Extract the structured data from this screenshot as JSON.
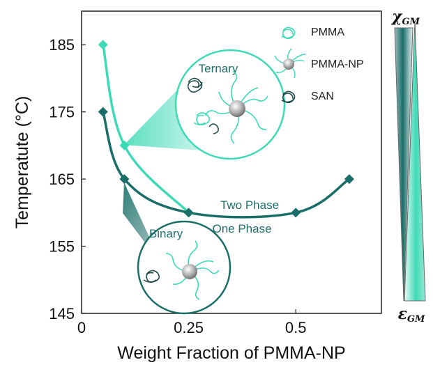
{
  "chart_data": {
    "type": "line",
    "xlabel": "Weight Fraction of PMMA-NP",
    "ylabel": "Temperatute (°C)",
    "xlim": [
      0,
      0.7
    ],
    "ylim": [
      145,
      190
    ],
    "xticks": [
      0,
      0.25,
      0.5
    ],
    "xtick_labels": [
      "0",
      "0.25",
      "0.5"
    ],
    "yticks": [
      145,
      155,
      165,
      175,
      185
    ],
    "ytick_labels": [
      "145",
      "155",
      "165",
      "175",
      "185"
    ],
    "series": [
      {
        "color": "#3ed9b6",
        "marker": "diamond",
        "x": [
          0.05,
          0.1,
          0.25
        ],
        "y": [
          185,
          170,
          160
        ]
      },
      {
        "color": "#1a6e68",
        "marker": "diamond",
        "x": [
          0.05,
          0.1,
          0.25,
          0.5,
          0.625
        ],
        "y": [
          175,
          165,
          160,
          160,
          165
        ]
      }
    ],
    "annotations": {
      "ternary": "Ternary",
      "binary": "Binary",
      "two_phase": "Two Phase",
      "one_phase": "One Phase"
    },
    "legend": {
      "placement": "top-right",
      "entries": [
        "PMMA",
        "PMMA-NP",
        "SAN"
      ]
    },
    "side_bars": {
      "top_label": "χGM",
      "bottom_label": "εGM",
      "dark_color": "#1a6e68",
      "light_color": "#3ed9b6"
    }
  },
  "colors": {
    "pmma": "#3ed9b6",
    "san": "#1f4a4a",
    "np_fill": "#b8b8b8"
  }
}
